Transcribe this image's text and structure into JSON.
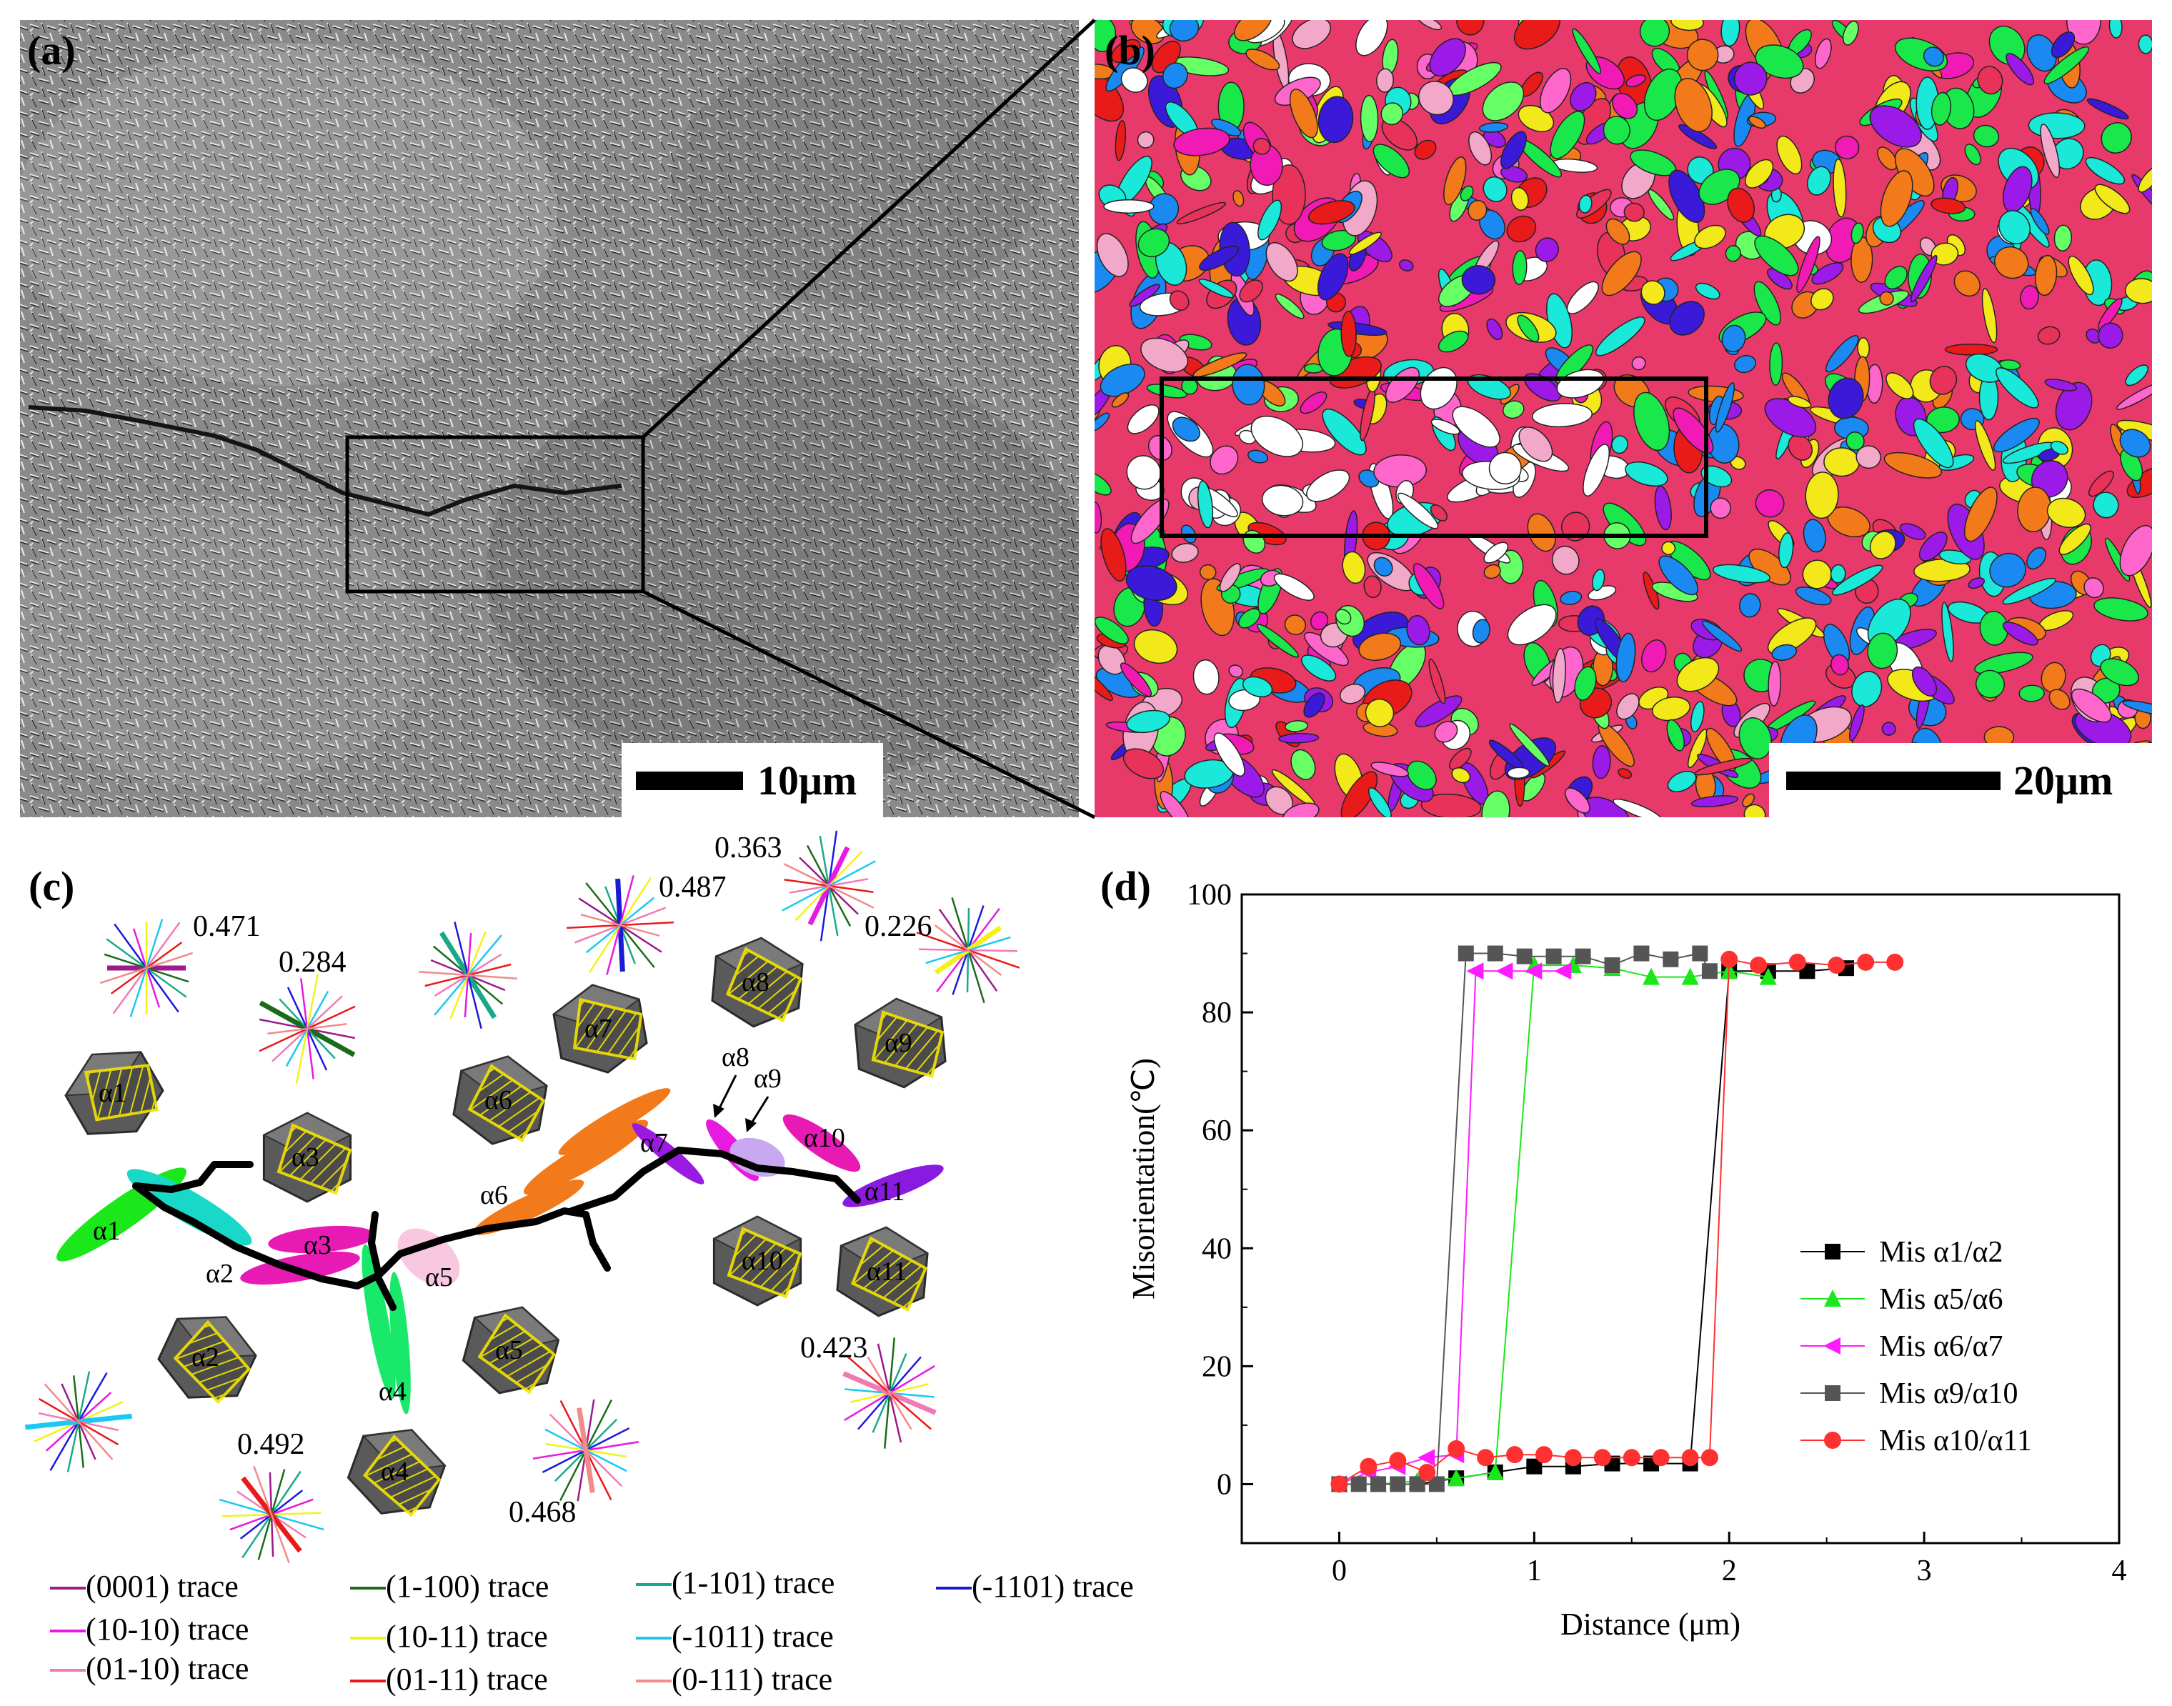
{
  "panels": {
    "a": {
      "label": "(a)",
      "scalebar": "10μm"
    },
    "b": {
      "label": "(b)",
      "scalebar": "20μm"
    },
    "c": {
      "label": "(c)",
      "alpha_labels": [
        "α1",
        "α2",
        "α3",
        "α4",
        "α5",
        "α6",
        "α7",
        "α8",
        "α9",
        "α10",
        "α11"
      ],
      "cell_labels": [
        "α1",
        "α2",
        "α3",
        "α4",
        "α5",
        "α6",
        "α7",
        "α8",
        "α9",
        "α10",
        "α11"
      ],
      "schmid_values": [
        "0.471",
        "0.284",
        "0.487",
        "0.363",
        "0.226",
        "0.423",
        "0.492",
        "0.468"
      ],
      "legend": [
        {
          "label": "(0001) trace",
          "color": "#9b1a8c"
        },
        {
          "label": "(1-100) trace",
          "color": "#1a6b1a"
        },
        {
          "label": "(1-101) trace",
          "color": "#1aa88a"
        },
        {
          "label": "(-1101) trace",
          "color": "#1a1ad8"
        },
        {
          "label": "(10-10) trace",
          "color": "#e81ae0"
        },
        {
          "label": "(10-11) trace",
          "color": "#f2f21a"
        },
        {
          "label": "(-1011) trace",
          "color": "#1ac8f2"
        },
        {
          "label": "(01-10) trace",
          "color": "#f27ab4"
        },
        {
          "label": "(01-11) trace",
          "color": "#e81a1a"
        },
        {
          "label": "(0-111) trace",
          "color": "#f28a8a"
        }
      ]
    }
  },
  "chart_data": {
    "type": "line",
    "panel_label": "(d)",
    "xlabel": "Distance (μm)",
    "ylabel": "Misorientation(℃)",
    "xlim": [
      -0.5,
      4
    ],
    "ylim": [
      -10,
      100
    ],
    "xticks": [
      "0",
      "1",
      "2",
      "3",
      "4"
    ],
    "yticks": [
      "0",
      "20",
      "40",
      "60",
      "80",
      "100"
    ],
    "legend_position": "right",
    "series": [
      {
        "name": "Mis α1/α2",
        "color": "#000000",
        "marker": "square",
        "x": [
          0,
          0.2,
          0.4,
          0.6,
          0.8,
          1.0,
          1.2,
          1.4,
          1.6,
          1.8,
          2.0,
          2.2,
          2.4,
          2.6
        ],
        "y": [
          0,
          0,
          0,
          1,
          2,
          3,
          3,
          3.5,
          3.5,
          3.5,
          87,
          87,
          87,
          87.5
        ]
      },
      {
        "name": "Mis α5/α6",
        "color": "#1ae81a",
        "marker": "triangle-up",
        "x": [
          0,
          0.2,
          0.4,
          0.6,
          0.8,
          1.0,
          1.2,
          1.4,
          1.6,
          1.8,
          2.0,
          2.2
        ],
        "y": [
          0,
          0,
          0.5,
          1,
          2,
          88,
          88,
          87.5,
          86,
          86,
          87,
          86
        ]
      },
      {
        "name": "Mis α6/α7",
        "color": "#ff1aff",
        "marker": "triangle-left",
        "x": [
          0,
          0.15,
          0.3,
          0.45,
          0.6,
          0.7,
          0.85,
          1.0,
          1.15
        ],
        "y": [
          0,
          2,
          3,
          4.5,
          5,
          87,
          87,
          87,
          87
        ]
      },
      {
        "name": "Mis α9/α10",
        "color": "#555555",
        "marker": "square",
        "x": [
          0,
          0.1,
          0.2,
          0.3,
          0.4,
          0.5,
          0.65,
          0.8,
          0.95,
          1.1,
          1.25,
          1.4,
          1.55,
          1.7,
          1.85,
          1.9
        ],
        "y": [
          0,
          0,
          0,
          0,
          0,
          0,
          90,
          90,
          89.5,
          89.5,
          89.5,
          88,
          90,
          89,
          90,
          87
        ]
      },
      {
        "name": "Mis α10/α11",
        "color": "#ff3030",
        "marker": "circle",
        "x": [
          0,
          0.15,
          0.3,
          0.45,
          0.6,
          0.75,
          0.9,
          1.05,
          1.2,
          1.35,
          1.5,
          1.65,
          1.8,
          1.9,
          2.0,
          2.15,
          2.35,
          2.55,
          2.7,
          2.85
        ],
        "y": [
          0,
          3,
          4,
          2,
          6,
          4.5,
          5,
          5,
          4.5,
          4.5,
          4.5,
          4.5,
          4.5,
          4.5,
          89,
          88,
          88.5,
          88,
          88.5,
          88.5
        ]
      }
    ]
  }
}
